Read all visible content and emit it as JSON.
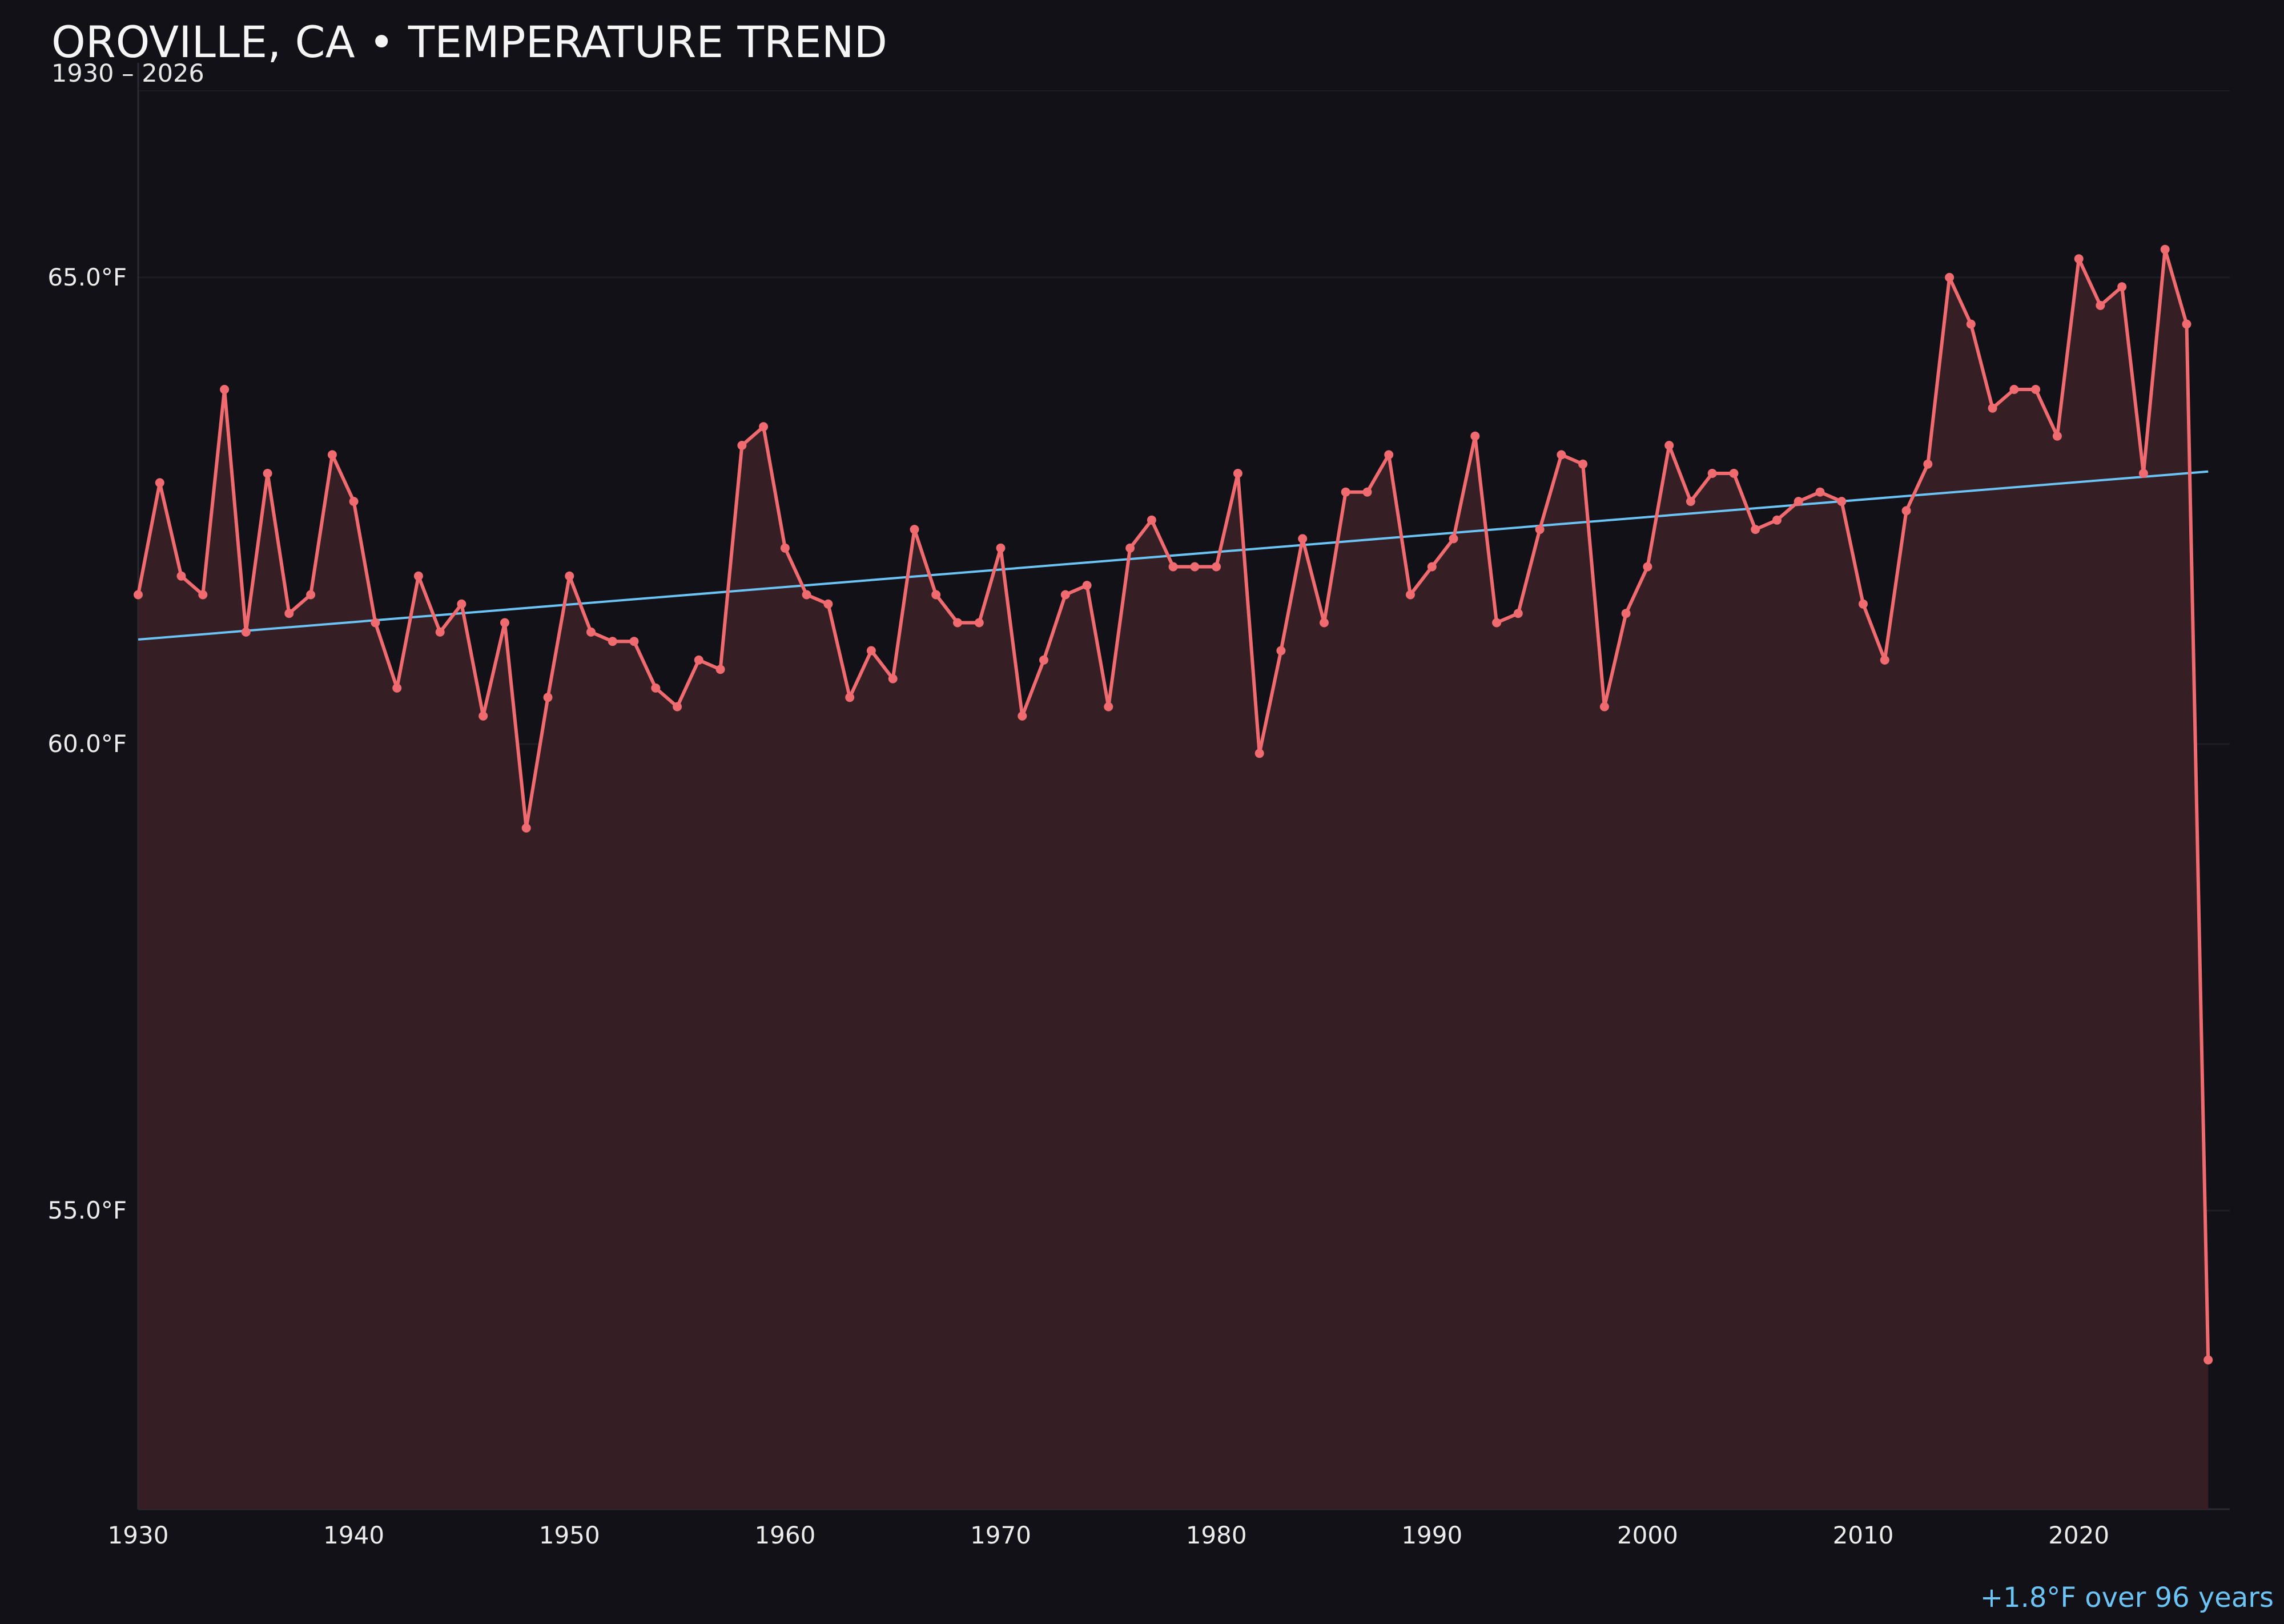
{
  "chart_data": {
    "type": "line",
    "title": "OROVILLE, CA • TEMPERATURE TREND",
    "subtitle": "1930 – 2026",
    "xlabel": "",
    "ylabel": "",
    "xlim": [
      1930,
      2027
    ],
    "ylim": [
      51.8,
      67.3
    ],
    "x_ticks": [
      1930,
      1940,
      1950,
      1960,
      1970,
      1980,
      1990,
      2000,
      2010,
      2020
    ],
    "x_tick_labels": [
      "1930",
      "1940",
      "1950",
      "1960",
      "1970",
      "1980",
      "1990",
      "2000",
      "2010",
      "2020"
    ],
    "y_ticks": [
      55,
      60,
      65
    ],
    "y_tick_labels": [
      "55.0°F",
      "60.0°F",
      "65.0°F"
    ],
    "grid": true,
    "x": [
      1930,
      1931,
      1932,
      1933,
      1934,
      1935,
      1936,
      1937,
      1938,
      1939,
      1940,
      1941,
      1942,
      1943,
      1944,
      1945,
      1946,
      1947,
      1948,
      1949,
      1950,
      1951,
      1952,
      1953,
      1954,
      1955,
      1956,
      1957,
      1958,
      1959,
      1960,
      1961,
      1962,
      1963,
      1964,
      1965,
      1966,
      1967,
      1968,
      1969,
      1970,
      1971,
      1972,
      1973,
      1974,
      1975,
      1976,
      1977,
      1978,
      1979,
      1980,
      1981,
      1982,
      1983,
      1984,
      1985,
      1986,
      1987,
      1988,
      1989,
      1990,
      1991,
      1992,
      1993,
      1994,
      1995,
      1996,
      1997,
      1998,
      1999,
      2000,
      2001,
      2002,
      2003,
      2004,
      2005,
      2006,
      2007,
      2008,
      2009,
      2010,
      2011,
      2012,
      2013,
      2014,
      2015,
      2016,
      2017,
      2018,
      2019,
      2020,
      2021,
      2022,
      2023,
      2024,
      2025,
      2026
    ],
    "series": [
      {
        "values": [
          61.6,
          62.8,
          61.8,
          61.6,
          63.8,
          61.2,
          62.9,
          61.4,
          61.6,
          63.1,
          62.6,
          61.3,
          60.6,
          61.8,
          61.2,
          61.5,
          60.3,
          61.3,
          59.1,
          60.5,
          61.8,
          61.2,
          61.1,
          61.1,
          60.6,
          60.4,
          60.9,
          60.8,
          63.2,
          63.4,
          62.1,
          61.6,
          61.5,
          60.5,
          61.0,
          60.7,
          62.3,
          61.6,
          61.3,
          61.3,
          62.1,
          60.3,
          60.9,
          61.6,
          61.7,
          60.4,
          62.1,
          62.4,
          61.9,
          61.9,
          61.9,
          62.9,
          59.9,
          61.0,
          62.2,
          61.3,
          62.7,
          62.7,
          63.1,
          61.6,
          61.9,
          62.2,
          63.3,
          61.3,
          61.4,
          62.3,
          63.1,
          63.0,
          60.4,
          61.4,
          61.9,
          63.2,
          62.6,
          62.9,
          62.9,
          62.3,
          62.4,
          62.6,
          62.7,
          62.6,
          61.5,
          60.9,
          62.5,
          63.0,
          65.0,
          64.5,
          63.6,
          63.8,
          63.8,
          63.3,
          65.2,
          64.7,
          64.9,
          62.9,
          65.3,
          64.5,
          53.4
        ],
        "color": "#f06b6f"
      },
      {
        "type": "trend",
        "x": [
          1930,
          2026
        ],
        "values": [
          61.12,
          62.92
        ],
        "color": "#6cc4f5"
      }
    ],
    "annotation": "+1.8°F over 96 years",
    "colors": {
      "background": "#121117",
      "line": "#f06b6f",
      "fill": "#351e24",
      "trend": "#6cc4f5",
      "grid": "#1f1d24",
      "axis": "#2c2a33"
    }
  }
}
